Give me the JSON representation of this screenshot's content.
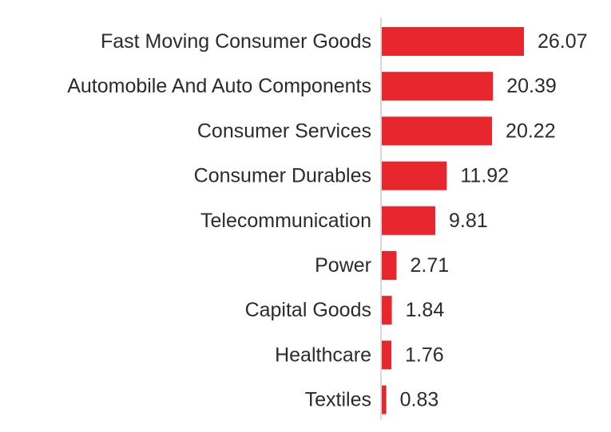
{
  "chart_data": {
    "type": "bar",
    "orientation": "horizontal",
    "title": "",
    "xlabel": "",
    "ylabel": "",
    "grid": false,
    "categories": [
      "Fast Moving Consumer Goods",
      "Automobile And Auto Components",
      "Consumer Services",
      "Consumer Durables",
      "Telecommunication",
      "Power",
      "Capital Goods",
      "Healthcare",
      "Textiles"
    ],
    "values": [
      26.07,
      20.39,
      20.22,
      11.92,
      9.81,
      2.71,
      1.84,
      1.76,
      0.83
    ],
    "value_labels": [
      "26.07",
      "20.39",
      "20.22",
      "11.92",
      "9.81",
      "2.71",
      "1.84",
      "1.76",
      "0.83"
    ],
    "xlim": [
      0,
      26.07
    ],
    "bar_color": "#e8262d",
    "axis_color": "#cccccc"
  }
}
